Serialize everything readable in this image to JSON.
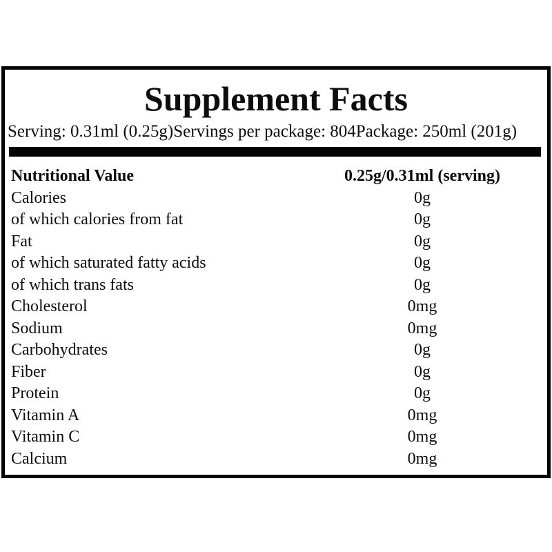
{
  "panel": {
    "title": "Supplement Facts",
    "serving_line": {
      "serving": "Serving: 0.31ml (0.25g)",
      "servings_per_package": "Servings per package: 804",
      "package": "Package: 250ml (201g)"
    },
    "table": {
      "header": {
        "name": "Nutritional Value",
        "amount": "0.25g/0.31ml (serving)"
      },
      "rows": [
        {
          "name": "Calories",
          "amount": "0g"
        },
        {
          "name": "of which calories from fat",
          "amount": "0g"
        },
        {
          "name": "Fat",
          "amount": "0g"
        },
        {
          "name": "of which saturated fatty acids",
          "amount": "0g"
        },
        {
          "name": "of which trans fats",
          "amount": "0g"
        },
        {
          "name": "Cholesterol",
          "amount": "0mg"
        },
        {
          "name": "Sodium",
          "amount": "0mg"
        },
        {
          "name": "Carbohydrates",
          "amount": "0g"
        },
        {
          "name": "Fiber",
          "amount": "0g"
        },
        {
          "name": "Protein",
          "amount": "0g"
        },
        {
          "name": "Vitamin A",
          "amount": "0mg"
        },
        {
          "name": "Vitamin C",
          "amount": "0mg"
        },
        {
          "name": "Calcium",
          "amount": "0mg"
        }
      ]
    },
    "colors": {
      "text": "#0d0d0d",
      "border": "#050505",
      "background": "#ffffff"
    }
  }
}
